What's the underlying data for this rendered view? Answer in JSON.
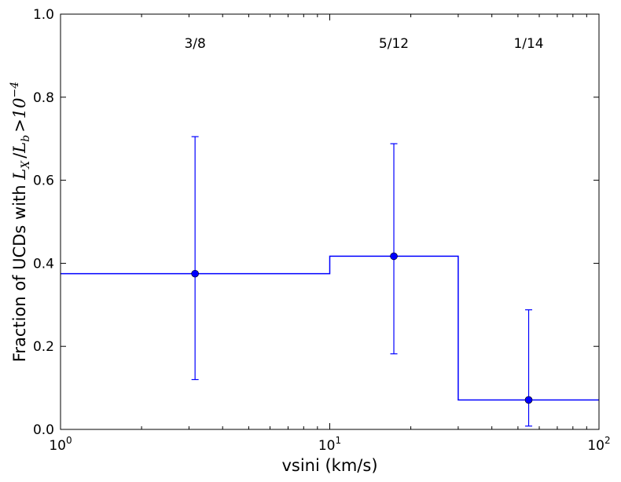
{
  "chart_data": {
    "type": "line",
    "xscale": "log",
    "xlim": [
      1,
      100
    ],
    "ylim": [
      0,
      1.0
    ],
    "xlabel": "vsini (km/s)",
    "ylabel": {
      "prefix": "Fraction of UCDs with ",
      "math": "L_X / L_b > 10^-4",
      "parts": {
        "L": "L",
        "sub_x": "X",
        "slash": "/",
        "sub_b": "b",
        "gt": ">",
        "base": "10",
        "exp": "−4"
      }
    },
    "xticks": [
      {
        "value": 1,
        "base": "10",
        "exp": "0"
      },
      {
        "value": 10,
        "base": "10",
        "exp": "1"
      },
      {
        "value": 100,
        "base": "10",
        "exp": "2"
      }
    ],
    "yticks": [
      {
        "value": 0.0,
        "label": "0.0"
      },
      {
        "value": 0.2,
        "label": "0.2"
      },
      {
        "value": 0.4,
        "label": "0.4"
      },
      {
        "value": 0.6,
        "label": "0.6"
      },
      {
        "value": 0.8,
        "label": "0.8"
      },
      {
        "value": 1.0,
        "label": "1.0"
      }
    ],
    "grid": false,
    "color": "#0000ff",
    "step": {
      "bins": [
        [
          1,
          10
        ],
        [
          10,
          30
        ],
        [
          30,
          100
        ]
      ],
      "values": [
        0.375,
        0.417,
        0.071
      ]
    },
    "points": [
      {
        "x": 3.16,
        "y": 0.375,
        "yerr_low": 0.12,
        "yerr_high": 0.705
      },
      {
        "x": 17.3,
        "y": 0.417,
        "yerr_low": 0.182,
        "yerr_high": 0.688
      },
      {
        "x": 54.8,
        "y": 0.071,
        "yerr_low": 0.008,
        "yerr_high": 0.288
      }
    ],
    "annotations": [
      {
        "x": 3.16,
        "y": 0.93,
        "text": "3/8"
      },
      {
        "x": 17.3,
        "y": 0.93,
        "text": "5/12"
      },
      {
        "x": 54.8,
        "y": 0.93,
        "text": "1/14"
      }
    ]
  }
}
